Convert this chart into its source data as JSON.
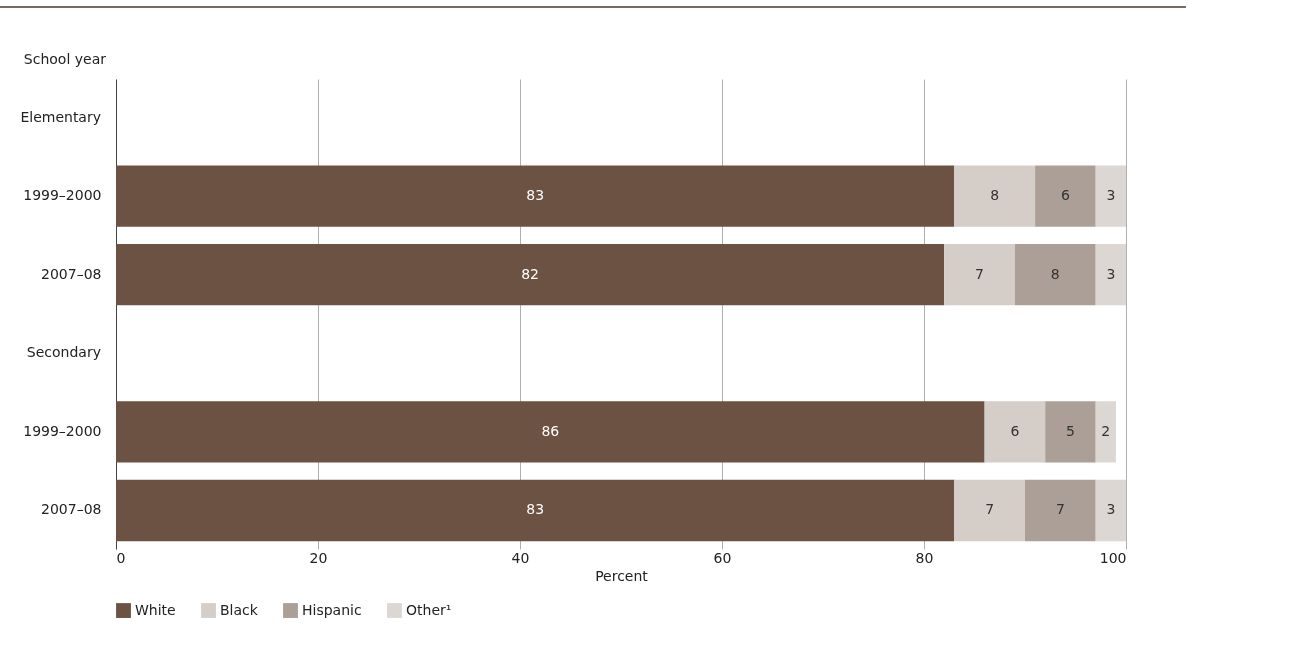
{
  "chart_data": {
    "type": "bar",
    "orientation": "horizontal",
    "stacked": true,
    "xlabel": "Percent",
    "categories": [
      "1999–2000",
      "2007–08",
      "1999–2000",
      "2007–08"
    ],
    "annotations": [
      "School year",
      "Elementary",
      "Secondary"
    ],
    "series": [
      {
        "name": "White",
        "color": "#6b5243",
        "values": [
          83,
          82,
          86,
          83
        ]
      },
      {
        "name": "Black",
        "color": "#d5cdc8",
        "values": [
          8,
          7,
          6,
          7
        ]
      },
      {
        "name": "Hispanic",
        "color": "#ab9f98",
        "values": [
          6,
          8,
          5,
          7
        ]
      },
      {
        "name": "Other¹",
        "color": "#ddd7d3",
        "values": [
          3,
          3,
          2,
          3
        ]
      }
    ],
    "xlim": [
      0,
      100
    ],
    "xticks": [
      0,
      20,
      40,
      60,
      80,
      100
    ],
    "grid": "x",
    "legend": "bottom",
    "data_labels": true
  }
}
